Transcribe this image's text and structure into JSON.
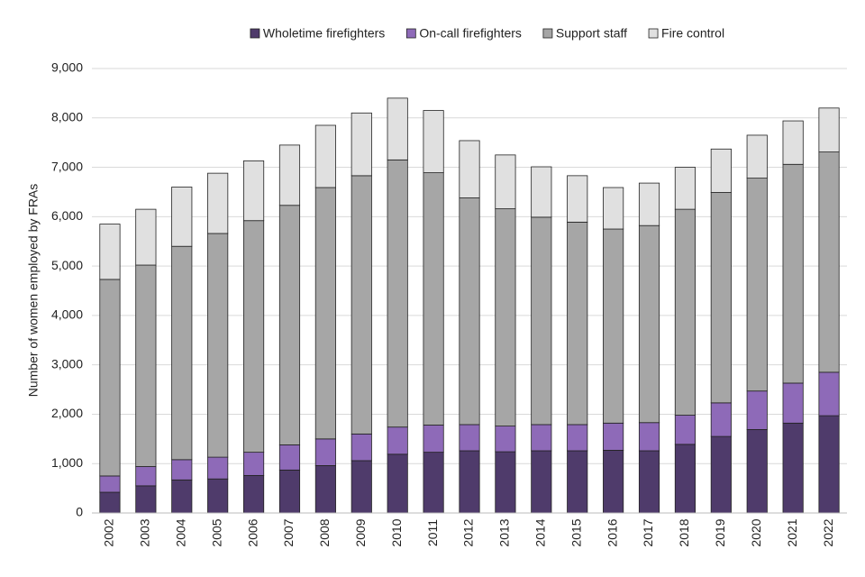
{
  "chart_data": {
    "type": "stacked_bar",
    "y_label": "Number of women employed by FRAs",
    "categories": [
      "2002",
      "2003",
      "2004",
      "2005",
      "2006",
      "2007",
      "2008",
      "2009",
      "2010",
      "2011",
      "2012",
      "2013",
      "2014",
      "2015",
      "2016",
      "2017",
      "2018",
      "2019",
      "2020",
      "2021",
      "2022"
    ],
    "series": [
      {
        "name": "Wholetime firefighters",
        "color": "#4f3b6b",
        "values": [
          420,
          550,
          670,
          690,
          760,
          870,
          960,
          1060,
          1190,
          1230,
          1260,
          1240,
          1260,
          1260,
          1270,
          1260,
          1390,
          1550,
          1690,
          1820,
          1970
        ]
      },
      {
        "name": "On-call firefighters",
        "color": "#8e6ab8",
        "values": [
          330,
          390,
          410,
          440,
          470,
          510,
          540,
          540,
          550,
          550,
          530,
          520,
          530,
          530,
          550,
          570,
          590,
          680,
          780,
          810,
          880
        ]
      },
      {
        "name": "Support staff",
        "color": "#a6a6a6",
        "values": [
          3980,
          4080,
          4320,
          4530,
          4690,
          4850,
          5090,
          5230,
          5410,
          5110,
          4590,
          4400,
          4200,
          4100,
          3930,
          3990,
          4170,
          4260,
          4310,
          4430,
          4460
        ]
      },
      {
        "name": "Fire control",
        "color": "#e0e0e0",
        "values": [
          1120,
          1130,
          1200,
          1220,
          1210,
          1220,
          1260,
          1270,
          1250,
          1260,
          1160,
          1090,
          1020,
          940,
          840,
          860,
          850,
          880,
          870,
          880,
          890
        ]
      }
    ],
    "ylim": [
      0,
      9000
    ],
    "yticks": [
      0,
      {
        "value": 1000,
        "label": "1,000"
      },
      {
        "value": 2000,
        "label": "2,000"
      },
      {
        "value": 3000,
        "label": "3,000"
      },
      {
        "value": 4000,
        "label": "4,000"
      },
      {
        "value": 5000,
        "label": "5,000"
      },
      {
        "value": 6000,
        "label": "6,000"
      },
      {
        "value": 7000,
        "label": "7,000"
      },
      {
        "value": 8000,
        "label": "8,000"
      },
      {
        "value": 9000,
        "label": "9,000"
      }
    ],
    "grid": true,
    "legend": "top"
  }
}
